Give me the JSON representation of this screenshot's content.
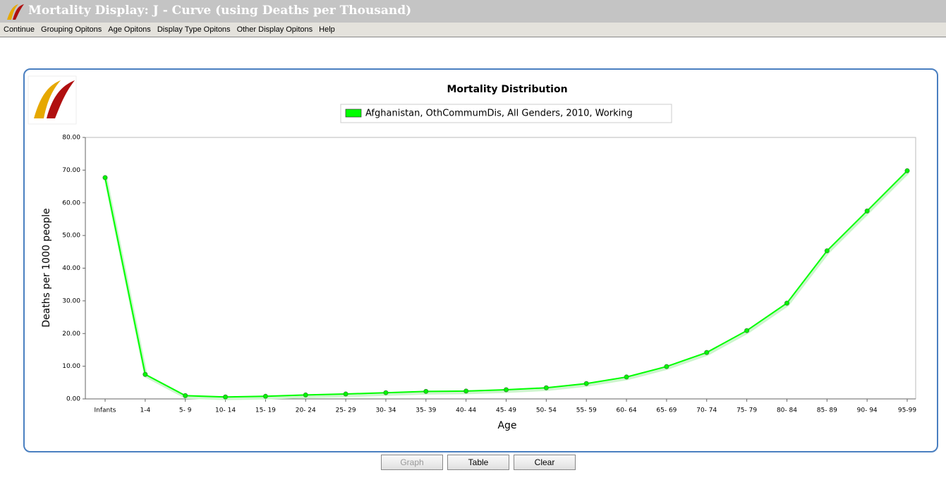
{
  "window": {
    "title": "Mortality Display: J - Curve (using Deaths per Thousand)"
  },
  "menu": [
    "Continue",
    "Grouping Opitons",
    "Age Opitons",
    "Display Type Opitons",
    "Other Display Opitons",
    "Help"
  ],
  "chart_data": {
    "type": "line",
    "title": "Mortality Distribution",
    "xlabel": "Age",
    "ylabel": "Deaths per 1000 people",
    "categories": [
      "Infants",
      "1-4",
      "5- 9",
      "10- 14",
      "15- 19",
      "20- 24",
      "25- 29",
      "30- 34",
      "35- 39",
      "40- 44",
      "45- 49",
      "50- 54",
      "55- 59",
      "60- 64",
      "65- 69",
      "70- 74",
      "75- 79",
      "80- 84",
      "85- 89",
      "90- 94",
      "95-99"
    ],
    "series": [
      {
        "name": "Afghanistan, OthCommumDis, All Genders, 2010, Working",
        "color": "#00ff00",
        "values": [
          67.7,
          7.5,
          1.0,
          0.6,
          0.8,
          1.2,
          1.5,
          1.9,
          2.3,
          2.4,
          2.8,
          3.4,
          4.7,
          6.7,
          9.9,
          14.2,
          20.9,
          29.3,
          45.3,
          57.5,
          69.8
        ]
      }
    ],
    "ylim": [
      0,
      80
    ],
    "yticks": [
      {
        "value": 0,
        "label": "0.00"
      },
      {
        "value": 10,
        "label": "10.00"
      },
      {
        "value": 20,
        "label": "20.00"
      },
      {
        "value": 30,
        "label": "30.00"
      },
      {
        "value": 40,
        "label": "40.00"
      },
      {
        "value": 50,
        "label": "50.00"
      },
      {
        "value": 60,
        "label": "60.00"
      },
      {
        "value": 70,
        "label": "70.00"
      },
      {
        "value": 80,
        "label": "80.00"
      }
    ],
    "grid": false
  },
  "buttons": [
    "Graph",
    "Table",
    "Clear"
  ]
}
